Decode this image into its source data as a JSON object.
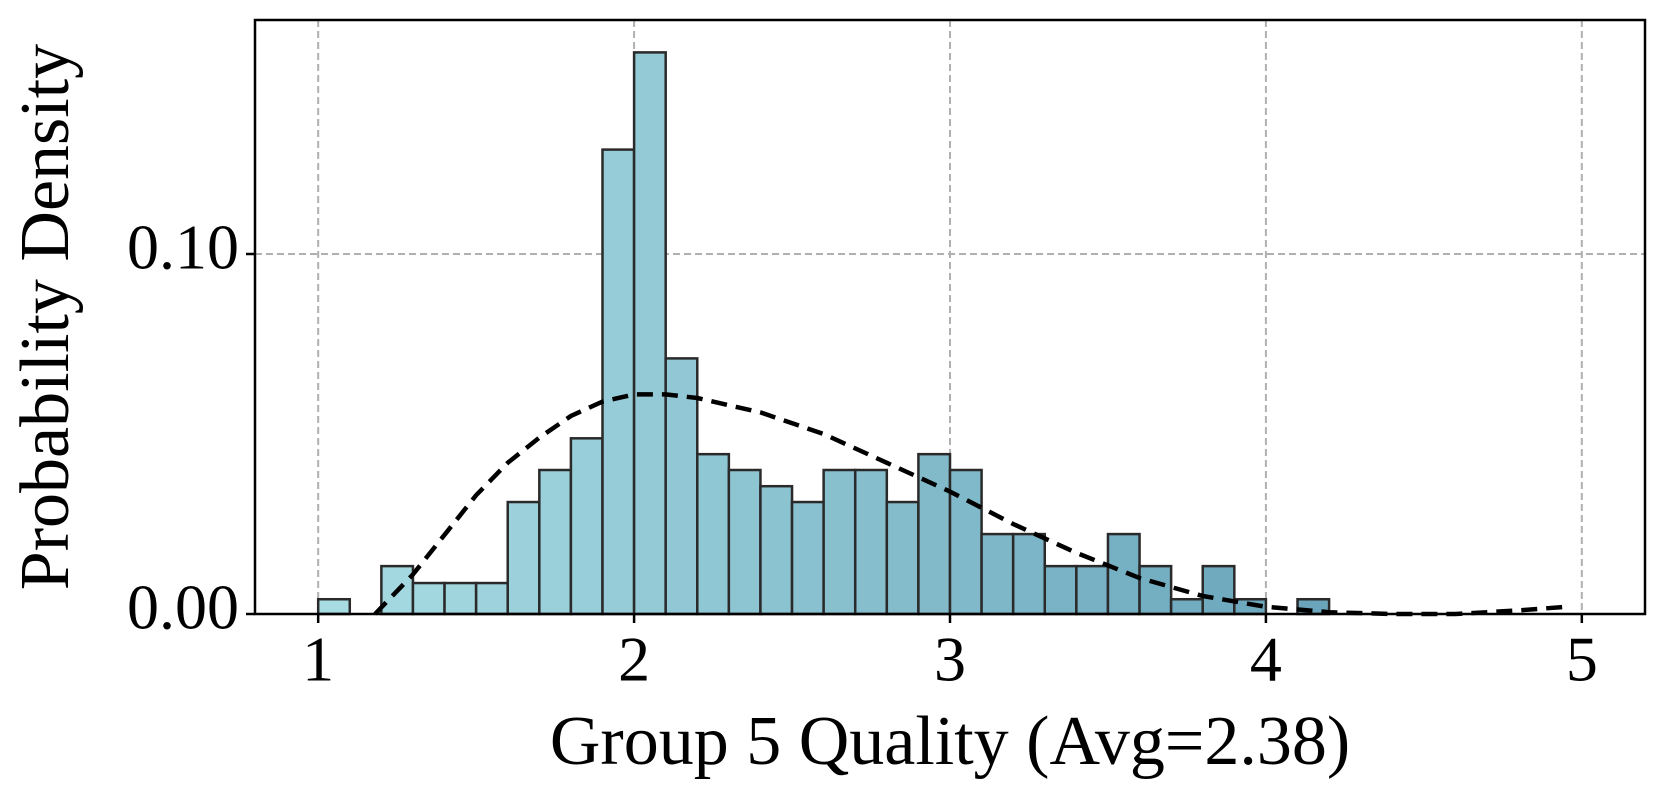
{
  "chart_data": {
    "type": "histogram",
    "xlabel": "Group 5 Quality (Avg=2.38)",
    "ylabel": "Probability Density",
    "bins": [
      1.0,
      1.1,
      1.2,
      1.3,
      1.4,
      1.5,
      1.6,
      1.7,
      1.8,
      1.9,
      2.0,
      2.1,
      2.2,
      2.3,
      2.4,
      2.5,
      2.6,
      2.7,
      2.8,
      2.9,
      3.0,
      3.1,
      3.2,
      3.3,
      3.4,
      3.5,
      3.6,
      3.7,
      3.8,
      3.9,
      4.0,
      4.1,
      4.2
    ],
    "values": [
      0.0041,
      0,
      0.0133,
      0.0086,
      0.0086,
      0.0086,
      0.0311,
      0.04,
      0.0488,
      0.129,
      0.156,
      0.071,
      0.0444,
      0.04,
      0.0355,
      0.0311,
      0.04,
      0.04,
      0.0311,
      0.0444,
      0.04,
      0.0222,
      0.0222,
      0.0133,
      0.0133,
      0.0222,
      0.0133,
      0.0041,
      0.0133,
      0.0041,
      0,
      0.0041
    ],
    "colors": [
      "#a8dce3",
      "#6aa5bb"
    ],
    "edgecolor": "#2a2a2a",
    "density_curve": {
      "color": "#000000",
      "x": [
        1.18,
        1.3,
        1.4,
        1.5,
        1.6,
        1.7,
        1.8,
        1.9,
        2.0,
        2.1,
        2.2,
        2.4,
        2.6,
        2.8,
        3.0,
        3.2,
        3.4,
        3.6,
        3.8,
        4.0,
        4.2,
        4.4,
        4.6,
        4.8,
        4.95
      ],
      "values": [
        0,
        0.011,
        0.022,
        0.033,
        0.042,
        0.049,
        0.055,
        0.059,
        0.061,
        0.061,
        0.06,
        0.056,
        0.05,
        0.042,
        0.034,
        0.025,
        0.017,
        0.01,
        0.005,
        0.002,
        0.0005,
        0,
        0,
        0.001,
        0.002
      ]
    },
    "xlim": [
      0.8,
      5.2
    ],
    "ylim": [
      0,
      0.165
    ],
    "xticks": [
      1,
      2,
      3,
      4,
      5
    ],
    "yticks": [
      {
        "value": 0,
        "label": "0.00"
      },
      {
        "value": 0.1,
        "label": "0.10"
      }
    ],
    "grid": true
  }
}
